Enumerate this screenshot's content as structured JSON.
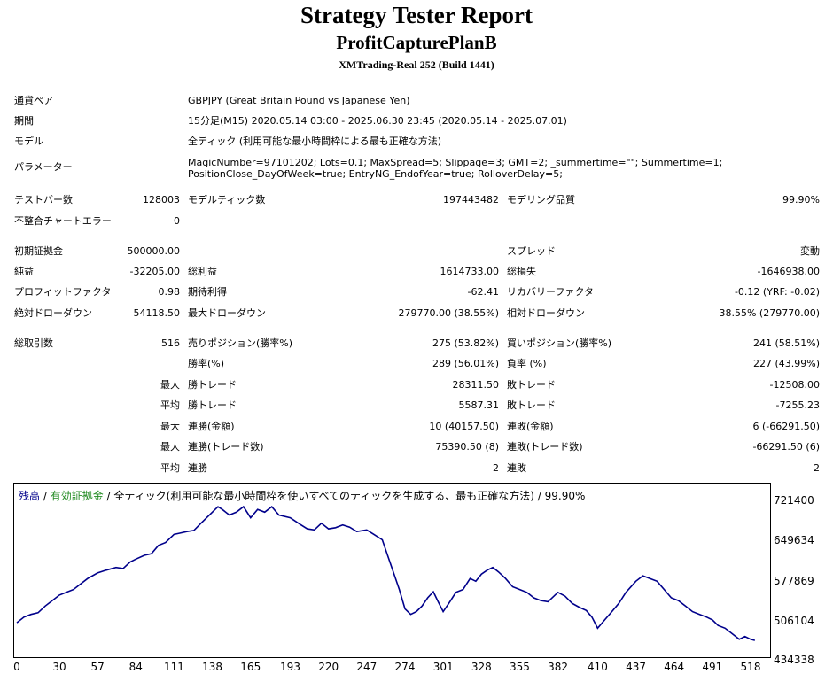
{
  "header": {
    "title": "Strategy Tester Report",
    "subtitle": "ProfitCapturePlanB",
    "server": "XMTrading-Real 252 (Build 1441)"
  },
  "settings": {
    "symbol_label": "通貨ペア",
    "symbol_value": "GBPJPY (Great Britain Pound vs Japanese Yen)",
    "period_label": "期間",
    "period_value": "15分足(M15) 2020.05.14 03:00 - 2025.06.30 23:45 (2020.05.14 - 2025.07.01)",
    "model_label": "モデル",
    "model_value": "全ティック (利用可能な最小時間枠による最も正確な方法)",
    "params_label": "パラメーター",
    "params_line1": "MagicNumber=97101202; Lots=0.1; MaxSpread=5; Slippage=3; GMT=2; _summertime=\"\"; Summertime=1;",
    "params_line2": "PositionClose_DayOfWeek=true; EntryNG_EndofYear=true; RolloverDelay=5;"
  },
  "stats": {
    "bars_label": "テストバー数",
    "bars_value": "128003",
    "ticks_label": "モデルティック数",
    "ticks_value": "197443482",
    "quality_label": "モデリング品質",
    "quality_value": "99.90%",
    "mismatch_label": "不整合チャートエラー",
    "mismatch_value": "0",
    "deposit_label": "初期証拠金",
    "deposit_value": "500000.00",
    "spread_label": "スプレッド",
    "spread_value": "変動",
    "net_label": "純益",
    "net_value": "-32205.00",
    "gross_profit_label": "総利益",
    "gross_profit_value": "1614733.00",
    "gross_loss_label": "総損失",
    "gross_loss_value": "-1646938.00",
    "pf_label": "プロフィットファクタ",
    "pf_value": "0.98",
    "expected_label": "期待利得",
    "expected_value": "-62.41",
    "recovery_label": "リカバリーファクタ",
    "recovery_value": "-0.12 (YRF: -0.02)",
    "abs_dd_label": "絶対ドローダウン",
    "abs_dd_value": "54118.50",
    "max_dd_label": "最大ドローダウン",
    "max_dd_value": "279770.00 (38.55%)",
    "rel_dd_label": "相対ドローダウン",
    "rel_dd_value": "38.55% (279770.00)",
    "trades_label": "総取引数",
    "trades_value": "516",
    "short_label": "売りポジション(勝率%)",
    "short_value": "275 (53.82%)",
    "long_label": "買いポジション(勝率%)",
    "long_value": "241 (58.51%)",
    "winrate_label": "勝率(%)",
    "winrate_value": "289 (56.01%)",
    "lossrate_label": "負率 (%)",
    "lossrate_value": "227 (43.99%)",
    "max_label": "最大",
    "avg_label": "平均",
    "largest_win_label": "勝トレード",
    "largest_win_value": "28311.50",
    "largest_loss_label": "敗トレード",
    "largest_loss_value": "-12508.00",
    "avg_win_label": "勝トレード",
    "avg_win_value": "5587.31",
    "avg_loss_label": "敗トレード",
    "avg_loss_value": "-7255.23",
    "consec_wins_label": "連勝(金額)",
    "consec_wins_value": "10 (40157.50)",
    "consec_losses_label": "連敗(金額)",
    "consec_losses_value": "6 (-66291.50)",
    "consec_profit_label": "連勝(トレード数)",
    "consec_profit_value": "75390.50 (8)",
    "consec_loss_label": "連敗(トレード数)",
    "consec_loss_value": "-66291.50 (6)",
    "avg_consec_wins_label": "連勝",
    "avg_consec_wins_value": "2",
    "avg_consec_losses_label": "連敗",
    "avg_consec_losses_value": "2"
  },
  "legend": {
    "balance": "残高",
    "sep1": " / ",
    "equity": "有効証拠金",
    "sep2": " / ",
    "model": "全ティック(利用可能な最小時間枠を使いすべてのティックを生成する、最も正確な方法)",
    "sep3": " / ",
    "quality": "99.90%"
  },
  "chart_data": {
    "type": "line",
    "series": [
      {
        "name": "残高",
        "x": [
          0,
          5,
          10,
          15,
          20,
          25,
          30,
          35,
          40,
          45,
          50,
          57,
          63,
          70,
          75,
          80,
          84,
          90,
          95,
          100,
          105,
          111,
          115,
          120,
          125,
          130,
          138,
          142,
          145,
          150,
          155,
          160,
          165,
          170,
          175,
          180,
          185,
          193,
          200,
          205,
          210,
          215,
          220,
          225,
          230,
          235,
          240,
          247,
          252,
          258,
          262,
          266,
          270,
          274,
          278,
          282,
          286,
          290,
          294,
          297,
          301,
          305,
          310,
          315,
          320,
          324,
          328,
          332,
          336,
          340,
          345,
          350,
          355,
          360,
          365,
          370,
          375,
          382,
          387,
          392,
          397,
          402,
          406,
          410,
          415,
          420,
          425,
          430,
          437,
          442,
          447,
          452,
          457,
          462,
          467,
          472,
          477,
          482,
          487,
          491,
          495,
          500,
          505,
          510,
          514,
          518,
          521
        ],
        "values": [
          500000,
          510000,
          515000,
          518000,
          530000,
          540000,
          550000,
          555000,
          560000,
          570000,
          580000,
          590000,
          595000,
          600000,
          598000,
          610000,
          615000,
          622000,
          625000,
          640000,
          645000,
          660000,
          662000,
          665000,
          667000,
          680000,
          700000,
          710000,
          705000,
          695000,
          700000,
          710000,
          690000,
          705000,
          700000,
          710000,
          695000,
          690000,
          678000,
          670000,
          668000,
          680000,
          670000,
          672000,
          677000,
          673000,
          665000,
          668000,
          660000,
          650000,
          620000,
          590000,
          560000,
          525000,
          515000,
          520000,
          530000,
          545000,
          556000,
          540000,
          520000,
          535000,
          555000,
          560000,
          580000,
          575000,
          588000,
          595000,
          600000,
          592000,
          580000,
          565000,
          560000,
          555000,
          545000,
          540000,
          538000,
          555000,
          548000,
          535000,
          528000,
          522000,
          510000,
          490000,
          505000,
          520000,
          535000,
          555000,
          575000,
          585000,
          580000,
          575000,
          560000,
          545000,
          540000,
          530000,
          520000,
          515000,
          510000,
          505000,
          495000,
          490000,
          480000,
          470000,
          475000,
          470000,
          467795
        ]
      }
    ],
    "yticks": [
      "721400",
      "649634",
      "577869",
      "506104",
      "434338"
    ],
    "xticks": [
      "0",
      "30",
      "57",
      "84",
      "111",
      "138",
      "165",
      "193",
      "220",
      "247",
      "274",
      "301",
      "328",
      "355",
      "382",
      "410",
      "437",
      "464",
      "491",
      "518"
    ],
    "ylim": [
      434338,
      721400
    ],
    "xlim": [
      0,
      528
    ],
    "line_color": "#00008b"
  },
  "colors": {
    "balance": "#00008b",
    "equity": "#228b22"
  }
}
